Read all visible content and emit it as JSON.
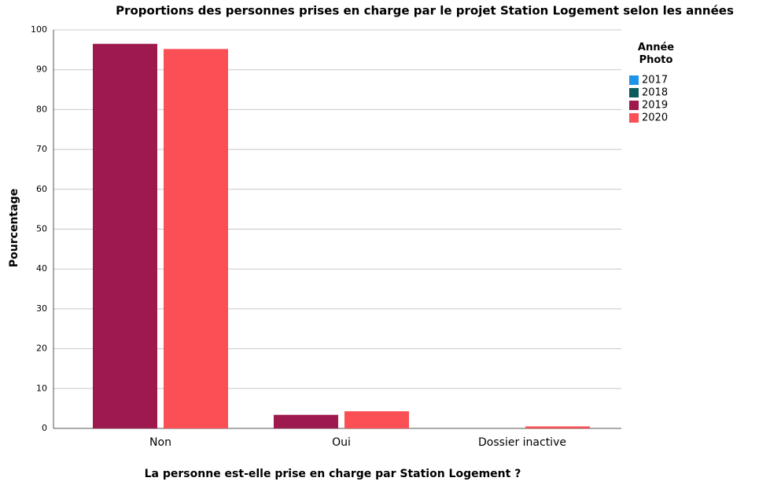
{
  "chart_data": {
    "type": "bar",
    "title": "Proportions des personnes prises en charge par le projet Station Logement selon les années",
    "xlabel": "La personne est-elle prise en charge par Station Logement ?",
    "ylabel": "Pourcentage",
    "legend_title": "Année Photo",
    "categories": [
      "Non",
      "Oui",
      "Dossier inactive"
    ],
    "series": [
      {
        "name": "2017",
        "color": "#1f94e6",
        "values": [
          null,
          null,
          null
        ]
      },
      {
        "name": "2018",
        "color": "#0b5c5a",
        "values": [
          null,
          null,
          null
        ]
      },
      {
        "name": "2019",
        "color": "#9e1a4e",
        "values": [
          96.5,
          3.4,
          null
        ]
      },
      {
        "name": "2020",
        "color": "#fa4f55",
        "values": [
          95.2,
          4.3,
          0.5
        ]
      }
    ],
    "ylim": [
      0,
      100
    ],
    "yticks": [
      0,
      10,
      20,
      30,
      40,
      50,
      60,
      70,
      80,
      90,
      100
    ],
    "grid": true,
    "legend": "right"
  }
}
